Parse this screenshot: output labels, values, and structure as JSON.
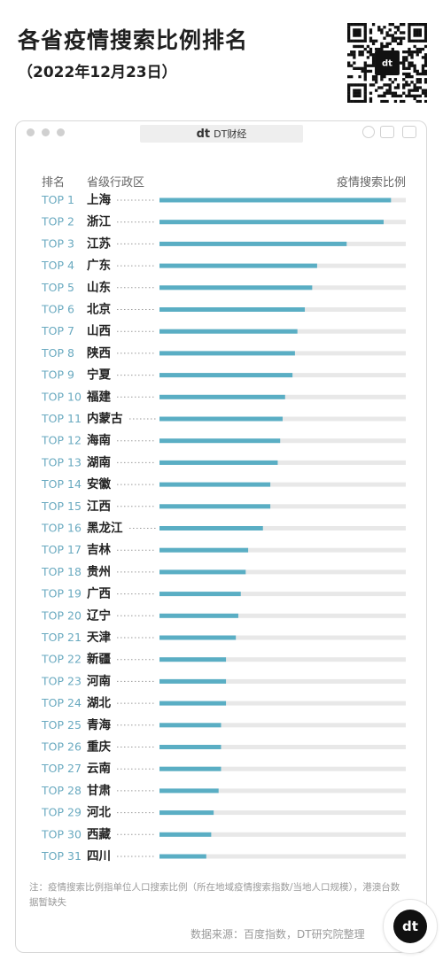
{
  "header": {
    "title": "各省疫情搜索比例排名",
    "date": "（2022年12月23日）"
  },
  "window": {
    "brand_logo": "dt",
    "brand": "DT财经"
  },
  "columns": {
    "rank": "排名",
    "province": "省级行政区",
    "ratio": "疫情搜索比例"
  },
  "colors": {
    "bar": "#5aaec4",
    "track": "#e8e8e8",
    "rank_text": "#6aaac0"
  },
  "chart_data": {
    "type": "bar",
    "orientation": "horizontal",
    "title": "各省疫情搜索比例排名",
    "subtitle": "（2022年12月23日）",
    "xlabel": "疫情搜索比例",
    "ylabel": "省级行政区",
    "xlim": [
      0,
      100
    ],
    "ranks": [
      "TOP 1",
      "TOP 2",
      "TOP 3",
      "TOP 4",
      "TOP 5",
      "TOP 6",
      "TOP 7",
      "TOP 8",
      "TOP 9",
      "TOP 10",
      "TOP 11",
      "TOP 12",
      "TOP 13",
      "TOP 14",
      "TOP 15",
      "TOP 16",
      "TOP 17",
      "TOP 18",
      "TOP 19",
      "TOP 20",
      "TOP 21",
      "TOP 22",
      "TOP 23",
      "TOP 24",
      "TOP 25",
      "TOP 26",
      "TOP 27",
      "TOP 28",
      "TOP 29",
      "TOP 30",
      "TOP 31"
    ],
    "categories": [
      "上海",
      "浙江",
      "江苏",
      "广东",
      "山东",
      "北京",
      "山西",
      "陕西",
      "宁夏",
      "福建",
      "内蒙古",
      "海南",
      "湖南",
      "安徽",
      "江西",
      "黑龙江",
      "吉林",
      "贵州",
      "广西",
      "辽宁",
      "天津",
      "新疆",
      "河南",
      "湖北",
      "青海",
      "重庆",
      "云南",
      "甘肃",
      "河北",
      "西藏",
      "四川"
    ],
    "values": [
      94,
      91,
      76,
      64,
      62,
      59,
      56,
      55,
      54,
      51,
      50,
      49,
      48,
      45,
      45,
      42,
      36,
      35,
      33,
      32,
      31,
      27,
      27,
      27,
      25,
      25,
      25,
      24,
      22,
      21,
      19
    ]
  },
  "footer": {
    "note": "注：疫情搜索比例指单位人口搜索比例（所在地域疫情搜索指数/当地人口规模），港澳台数据暂缺失",
    "source": "数据来源：百度指数，DT研究院整理",
    "badge_logo": "dt"
  }
}
